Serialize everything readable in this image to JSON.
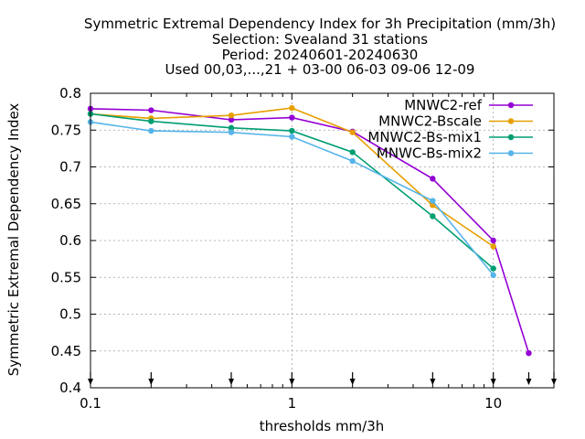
{
  "chart_data": {
    "type": "line",
    "title_lines": [
      "Symmetric Extremal Dependency Index  for 3h Precipitation (mm/3h)",
      "Selection: Svealand     31 stations",
      "Period: 20240601-20240630",
      "Used 00,03,...,21 + 03-00 06-03 09-06 12-09"
    ],
    "xlabel": "thresholds mm/3h",
    "ylabel": "Symmetric Extremal Dependency Index",
    "xscale": "log",
    "xlim": [
      0.1,
      20
    ],
    "ylim": [
      0.4,
      0.8
    ],
    "xticks": [
      {
        "value": 0.1,
        "label": "0.1"
      },
      {
        "value": 1,
        "label": "1"
      },
      {
        "value": 10,
        "label": "10"
      }
    ],
    "yticks": [
      {
        "value": 0.4,
        "label": "0.4"
      },
      {
        "value": 0.45,
        "label": "0.45"
      },
      {
        "value": 0.5,
        "label": "0.5"
      },
      {
        "value": 0.55,
        "label": "0.55"
      },
      {
        "value": 0.6,
        "label": "0.6"
      },
      {
        "value": 0.65,
        "label": "0.65"
      },
      {
        "value": 0.7,
        "label": "0.7"
      },
      {
        "value": 0.75,
        "label": "0.75"
      },
      {
        "value": 0.8,
        "label": "0.8"
      }
    ],
    "grid": true,
    "legend_position": "top-right",
    "arrow_markers_x": [
      0.1,
      0.2,
      0.5,
      1,
      2,
      5,
      10,
      15,
      20
    ],
    "series": [
      {
        "name": "MNWC2-ref",
        "color": "#9400d3",
        "marker": "circle",
        "x": [
          0.1,
          0.2,
          0.5,
          1,
          2,
          5,
          10,
          15
        ],
        "y": [
          0.779,
          0.777,
          0.764,
          0.767,
          0.748,
          0.684,
          0.6,
          0.447
        ]
      },
      {
        "name": "MNWC2-Bscale",
        "color": "#e69f00",
        "marker": "circle",
        "x": [
          0.1,
          0.2,
          0.5,
          1,
          2,
          5,
          10
        ],
        "y": [
          0.772,
          0.766,
          0.77,
          0.78,
          0.747,
          0.648,
          0.592
        ]
      },
      {
        "name": "MNWC2-Bs-mix1",
        "color": "#009e73",
        "marker": "circle",
        "x": [
          0.1,
          0.2,
          0.5,
          1,
          2,
          5,
          10
        ],
        "y": [
          0.772,
          0.762,
          0.753,
          0.749,
          0.72,
          0.633,
          0.562
        ]
      },
      {
        "name": "MNWC-Bs-mix2",
        "color": "#56b4e9",
        "marker": "circle",
        "x": [
          0.1,
          0.2,
          0.5,
          1,
          2,
          5,
          10
        ],
        "y": [
          0.761,
          0.749,
          0.747,
          0.741,
          0.708,
          0.654,
          0.553
        ]
      }
    ]
  }
}
